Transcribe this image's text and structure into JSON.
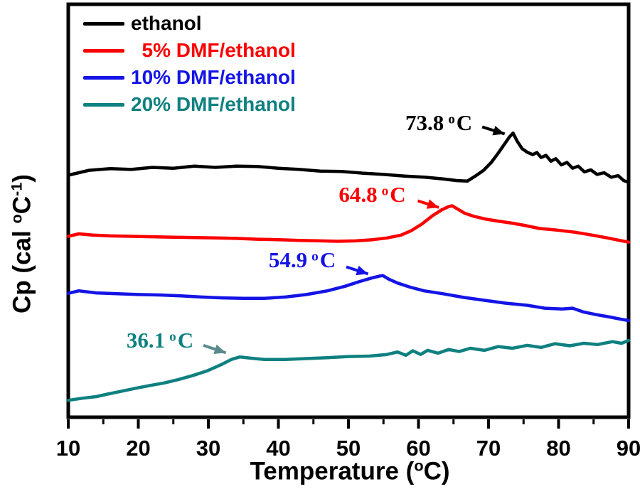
{
  "figure": {
    "background": "#ffffff",
    "frame_color": "#000000"
  },
  "chart_data": {
    "type": "line",
    "title": "",
    "xlabel": {
      "pre": "Temperature (",
      "sup": "o",
      "post": "C)"
    },
    "ylabel": {
      "pre": "Cp (cal ",
      "sup1": "o",
      "mid": "C",
      "sup2": "-1",
      "post": ")"
    },
    "xaxis": {
      "min": 10,
      "max": 90,
      "major_ticks": [
        10,
        20,
        30,
        40,
        50,
        60,
        70,
        80,
        90
      ],
      "minor_ticks": [
        15,
        25,
        35,
        45,
        55,
        65,
        75,
        85
      ]
    },
    "yaxis": {
      "min": 0,
      "max": 1,
      "ticks": [],
      "units": "arbitrary"
    },
    "legend_position": "top-left-inside",
    "series": [
      {
        "name": "ethanol",
        "color": "#000000",
        "peak_temperature_c": 73.8,
        "points": [
          [
            10,
            0.586
          ],
          [
            11.5,
            0.592
          ],
          [
            13,
            0.598
          ],
          [
            16,
            0.602
          ],
          [
            19,
            0.6
          ],
          [
            22,
            0.605
          ],
          [
            25,
            0.603
          ],
          [
            28,
            0.608
          ],
          [
            31,
            0.605
          ],
          [
            34,
            0.608
          ],
          [
            37,
            0.607
          ],
          [
            40,
            0.603
          ],
          [
            43,
            0.6
          ],
          [
            46,
            0.596
          ],
          [
            49,
            0.595
          ],
          [
            52,
            0.591
          ],
          [
            55,
            0.588
          ],
          [
            58,
            0.584
          ],
          [
            61,
            0.581
          ],
          [
            63.5,
            0.577
          ],
          [
            65.5,
            0.573
          ],
          [
            67,
            0.572
          ],
          [
            68.2,
            0.585
          ],
          [
            69.3,
            0.598
          ],
          [
            70.4,
            0.617
          ],
          [
            71.4,
            0.64
          ],
          [
            72.3,
            0.662
          ],
          [
            73,
            0.679
          ],
          [
            73.5,
            0.688
          ],
          [
            74.1,
            0.668
          ],
          [
            74.8,
            0.65
          ],
          [
            75.6,
            0.641
          ],
          [
            76.3,
            0.636
          ],
          [
            76.9,
            0.641
          ],
          [
            77.5,
            0.629
          ],
          [
            78.2,
            0.634
          ],
          [
            78.9,
            0.62
          ],
          [
            79.6,
            0.626
          ],
          [
            80.4,
            0.611
          ],
          [
            81.2,
            0.617
          ],
          [
            82,
            0.603
          ],
          [
            82.8,
            0.608
          ],
          [
            83.7,
            0.594
          ],
          [
            84.6,
            0.599
          ],
          [
            85.5,
            0.588
          ],
          [
            86.5,
            0.592
          ],
          [
            87.5,
            0.581
          ],
          [
            88.5,
            0.585
          ],
          [
            89.3,
            0.573
          ],
          [
            90,
            0.569
          ]
        ]
      },
      {
        "name": "  5% DMF/ethanol",
        "color": "#fb0000",
        "peak_temperature_c": 64.8,
        "points": [
          [
            10,
            0.438
          ],
          [
            11.5,
            0.444
          ],
          [
            13.5,
            0.441
          ],
          [
            16,
            0.439
          ],
          [
            19,
            0.438
          ],
          [
            22,
            0.437
          ],
          [
            25,
            0.436
          ],
          [
            28,
            0.435
          ],
          [
            31,
            0.434
          ],
          [
            34,
            0.433
          ],
          [
            37,
            0.431
          ],
          [
            40,
            0.43
          ],
          [
            43,
            0.428
          ],
          [
            46,
            0.427
          ],
          [
            48.5,
            0.426
          ],
          [
            51,
            0.427
          ],
          [
            53.5,
            0.43
          ],
          [
            55.5,
            0.434
          ],
          [
            57.5,
            0.441
          ],
          [
            59,
            0.452
          ],
          [
            60.5,
            0.468
          ],
          [
            62,
            0.488
          ],
          [
            63.3,
            0.502
          ],
          [
            64.3,
            0.51
          ],
          [
            64.8,
            0.512
          ],
          [
            65.6,
            0.504
          ],
          [
            66.6,
            0.494
          ],
          [
            68,
            0.486
          ],
          [
            69.5,
            0.48
          ],
          [
            71.3,
            0.475
          ],
          [
            73.3,
            0.47
          ],
          [
            75.3,
            0.464
          ],
          [
            77.3,
            0.457
          ],
          [
            79.8,
            0.453
          ],
          [
            82.3,
            0.448
          ],
          [
            84.8,
            0.441
          ],
          [
            87,
            0.434
          ],
          [
            88.5,
            0.429
          ],
          [
            90,
            0.424
          ]
        ]
      },
      {
        "name": "10% DMF/ethanol",
        "color": "#1414e6",
        "peak_temperature_c": 54.9,
        "points": [
          [
            10,
            0.3
          ],
          [
            11.5,
            0.306
          ],
          [
            14,
            0.301
          ],
          [
            17,
            0.299
          ],
          [
            20,
            0.297
          ],
          [
            23,
            0.296
          ],
          [
            26,
            0.294
          ],
          [
            29,
            0.291
          ],
          [
            32,
            0.289
          ],
          [
            35,
            0.288
          ],
          [
            38,
            0.288
          ],
          [
            41,
            0.291
          ],
          [
            44,
            0.297
          ],
          [
            47,
            0.306
          ],
          [
            49.5,
            0.317
          ],
          [
            51.5,
            0.328
          ],
          [
            53.3,
            0.337
          ],
          [
            54.5,
            0.342
          ],
          [
            54.9,
            0.343
          ],
          [
            55.8,
            0.334
          ],
          [
            57,
            0.325
          ],
          [
            58.8,
            0.315
          ],
          [
            60.8,
            0.306
          ],
          [
            63.5,
            0.299
          ],
          [
            66.5,
            0.29
          ],
          [
            69.5,
            0.283
          ],
          [
            72.5,
            0.276
          ],
          [
            75.5,
            0.271
          ],
          [
            78,
            0.264
          ],
          [
            80.5,
            0.262
          ],
          [
            82,
            0.264
          ],
          [
            83.5,
            0.255
          ],
          [
            85.5,
            0.248
          ],
          [
            87.5,
            0.242
          ],
          [
            89,
            0.237
          ],
          [
            90,
            0.234
          ]
        ]
      },
      {
        "name": "20% DMF/ethanol",
        "color": "#0f8080",
        "peak_temperature_c": 36.1,
        "points": [
          [
            10,
            0.041
          ],
          [
            12,
            0.046
          ],
          [
            14,
            0.05
          ],
          [
            15.6,
            0.056
          ],
          [
            17.6,
            0.063
          ],
          [
            19.6,
            0.07
          ],
          [
            21.7,
            0.077
          ],
          [
            23.7,
            0.083
          ],
          [
            25.7,
            0.091
          ],
          [
            27.8,
            0.101
          ],
          [
            29.8,
            0.112
          ],
          [
            31.8,
            0.127
          ],
          [
            33.3,
            0.14
          ],
          [
            34.5,
            0.146
          ],
          [
            36,
            0.143
          ],
          [
            38,
            0.14
          ],
          [
            41,
            0.14
          ],
          [
            44,
            0.142
          ],
          [
            47,
            0.144
          ],
          [
            50,
            0.147
          ],
          [
            53,
            0.148
          ],
          [
            55.5,
            0.152
          ],
          [
            57,
            0.158
          ],
          [
            58.2,
            0.15
          ],
          [
            59.2,
            0.161
          ],
          [
            60.3,
            0.152
          ],
          [
            61.3,
            0.162
          ],
          [
            62.8,
            0.155
          ],
          [
            64.3,
            0.164
          ],
          [
            65.8,
            0.159
          ],
          [
            67.4,
            0.167
          ],
          [
            69.4,
            0.162
          ],
          [
            71.4,
            0.171
          ],
          [
            73.4,
            0.167
          ],
          [
            75.5,
            0.174
          ],
          [
            77.5,
            0.169
          ],
          [
            79.5,
            0.178
          ],
          [
            81.6,
            0.173
          ],
          [
            83.6,
            0.179
          ],
          [
            85.6,
            0.176
          ],
          [
            87.7,
            0.183
          ],
          [
            89,
            0.179
          ],
          [
            90,
            0.186
          ]
        ]
      }
    ],
    "annotations": [
      {
        "value": "73.8",
        "unit_sup": "o",
        "unit": "C",
        "color": "#000000",
        "arrow_color": "#000000",
        "text_pos": [
          62.9,
          0.712
        ],
        "arrow_from": [
          69.1,
          0.703
        ],
        "arrow_to": [
          72.3,
          0.686
        ]
      },
      {
        "value": "64.8",
        "unit_sup": "o",
        "unit": "C",
        "color": "#fb0000",
        "arrow_color": "#fb0000",
        "text_pos": [
          53.4,
          0.538
        ],
        "arrow_from": [
          59.9,
          0.524
        ],
        "arrow_to": [
          62.9,
          0.508
        ]
      },
      {
        "value": "54.9",
        "unit_sup": "o",
        "unit": "C",
        "color": "#1414e6",
        "arrow_color": "#1414e6",
        "text_pos": [
          43.4,
          0.38
        ],
        "arrow_from": [
          49.7,
          0.364
        ],
        "arrow_to": [
          52.8,
          0.347
        ]
      },
      {
        "value": "36.1",
        "unit_sup": "o",
        "unit": "C",
        "color": "#0f8080",
        "arrow_color": "#5a8a8a",
        "text_pos": [
          23.1,
          0.186
        ],
        "arrow_from": [
          29.3,
          0.174
        ],
        "arrow_to": [
          32.5,
          0.156
        ]
      }
    ]
  }
}
